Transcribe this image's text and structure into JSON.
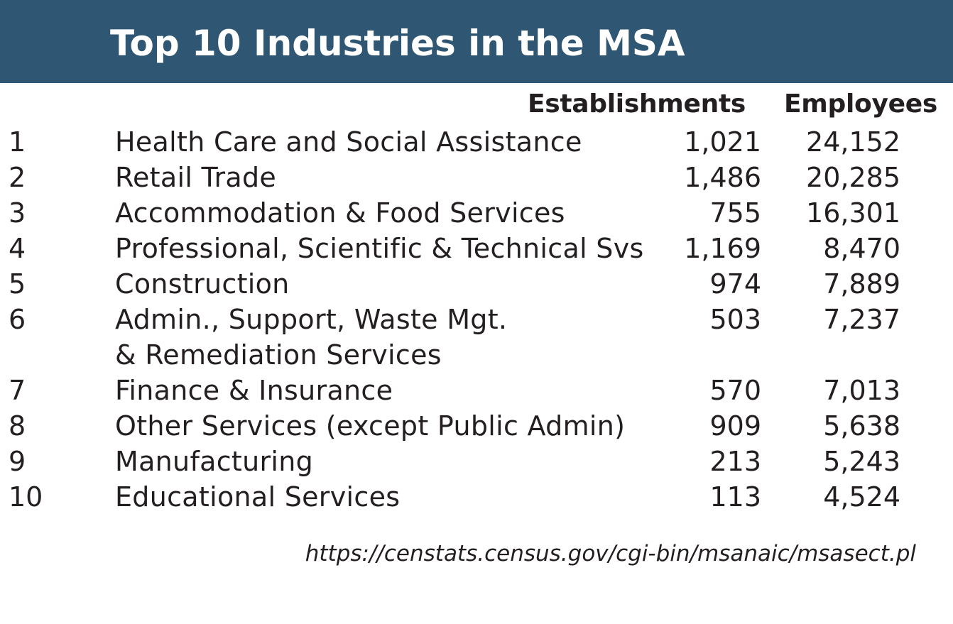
{
  "title": "Top 10 Industries in the MSA",
  "columns": {
    "establishments": "Establishments",
    "employees": "Employees"
  },
  "rows": [
    {
      "rank": "1",
      "industry": "Health Care and Social Assistance",
      "establishments": "1,021",
      "employees": "24,152"
    },
    {
      "rank": "2",
      "industry": "Retail Trade",
      "establishments": "1,486",
      "employees": "20,285"
    },
    {
      "rank": "3",
      "industry": "Accommodation & Food Services",
      "establishments": "755",
      "employees": "16,301"
    },
    {
      "rank": "4",
      "industry": "Professional, Scientific & Technical Svs",
      "establishments": "1,169",
      "employees": "8,470"
    },
    {
      "rank": "5",
      "industry": "Construction",
      "establishments": "974",
      "employees": "7,889"
    },
    {
      "rank": "6",
      "industry": "Admin., Support, Waste Mgt.",
      "industry_line2": "& Remediation Services",
      "establishments": "503",
      "employees": "7,237"
    },
    {
      "rank": "7",
      "industry": "Finance & Insurance",
      "establishments": "570",
      "employees": "7,013"
    },
    {
      "rank": "8",
      "industry": "Other Services (except Public Admin)",
      "establishments": "909",
      "employees": "5,638"
    },
    {
      "rank": "9",
      "industry": "Manufacturing",
      "establishments": "213",
      "employees": "5,243"
    },
    {
      "rank": "10",
      "industry": "Educational Services",
      "establishments": "113",
      "employees": "4,524"
    }
  ],
  "source_url": "https://censtats.census.gov/cgi-bin/msanaic/msasect.pl",
  "colors": {
    "title_bar": "#2f5672",
    "title_text": "#ffffff",
    "body_text": "#231f20"
  }
}
